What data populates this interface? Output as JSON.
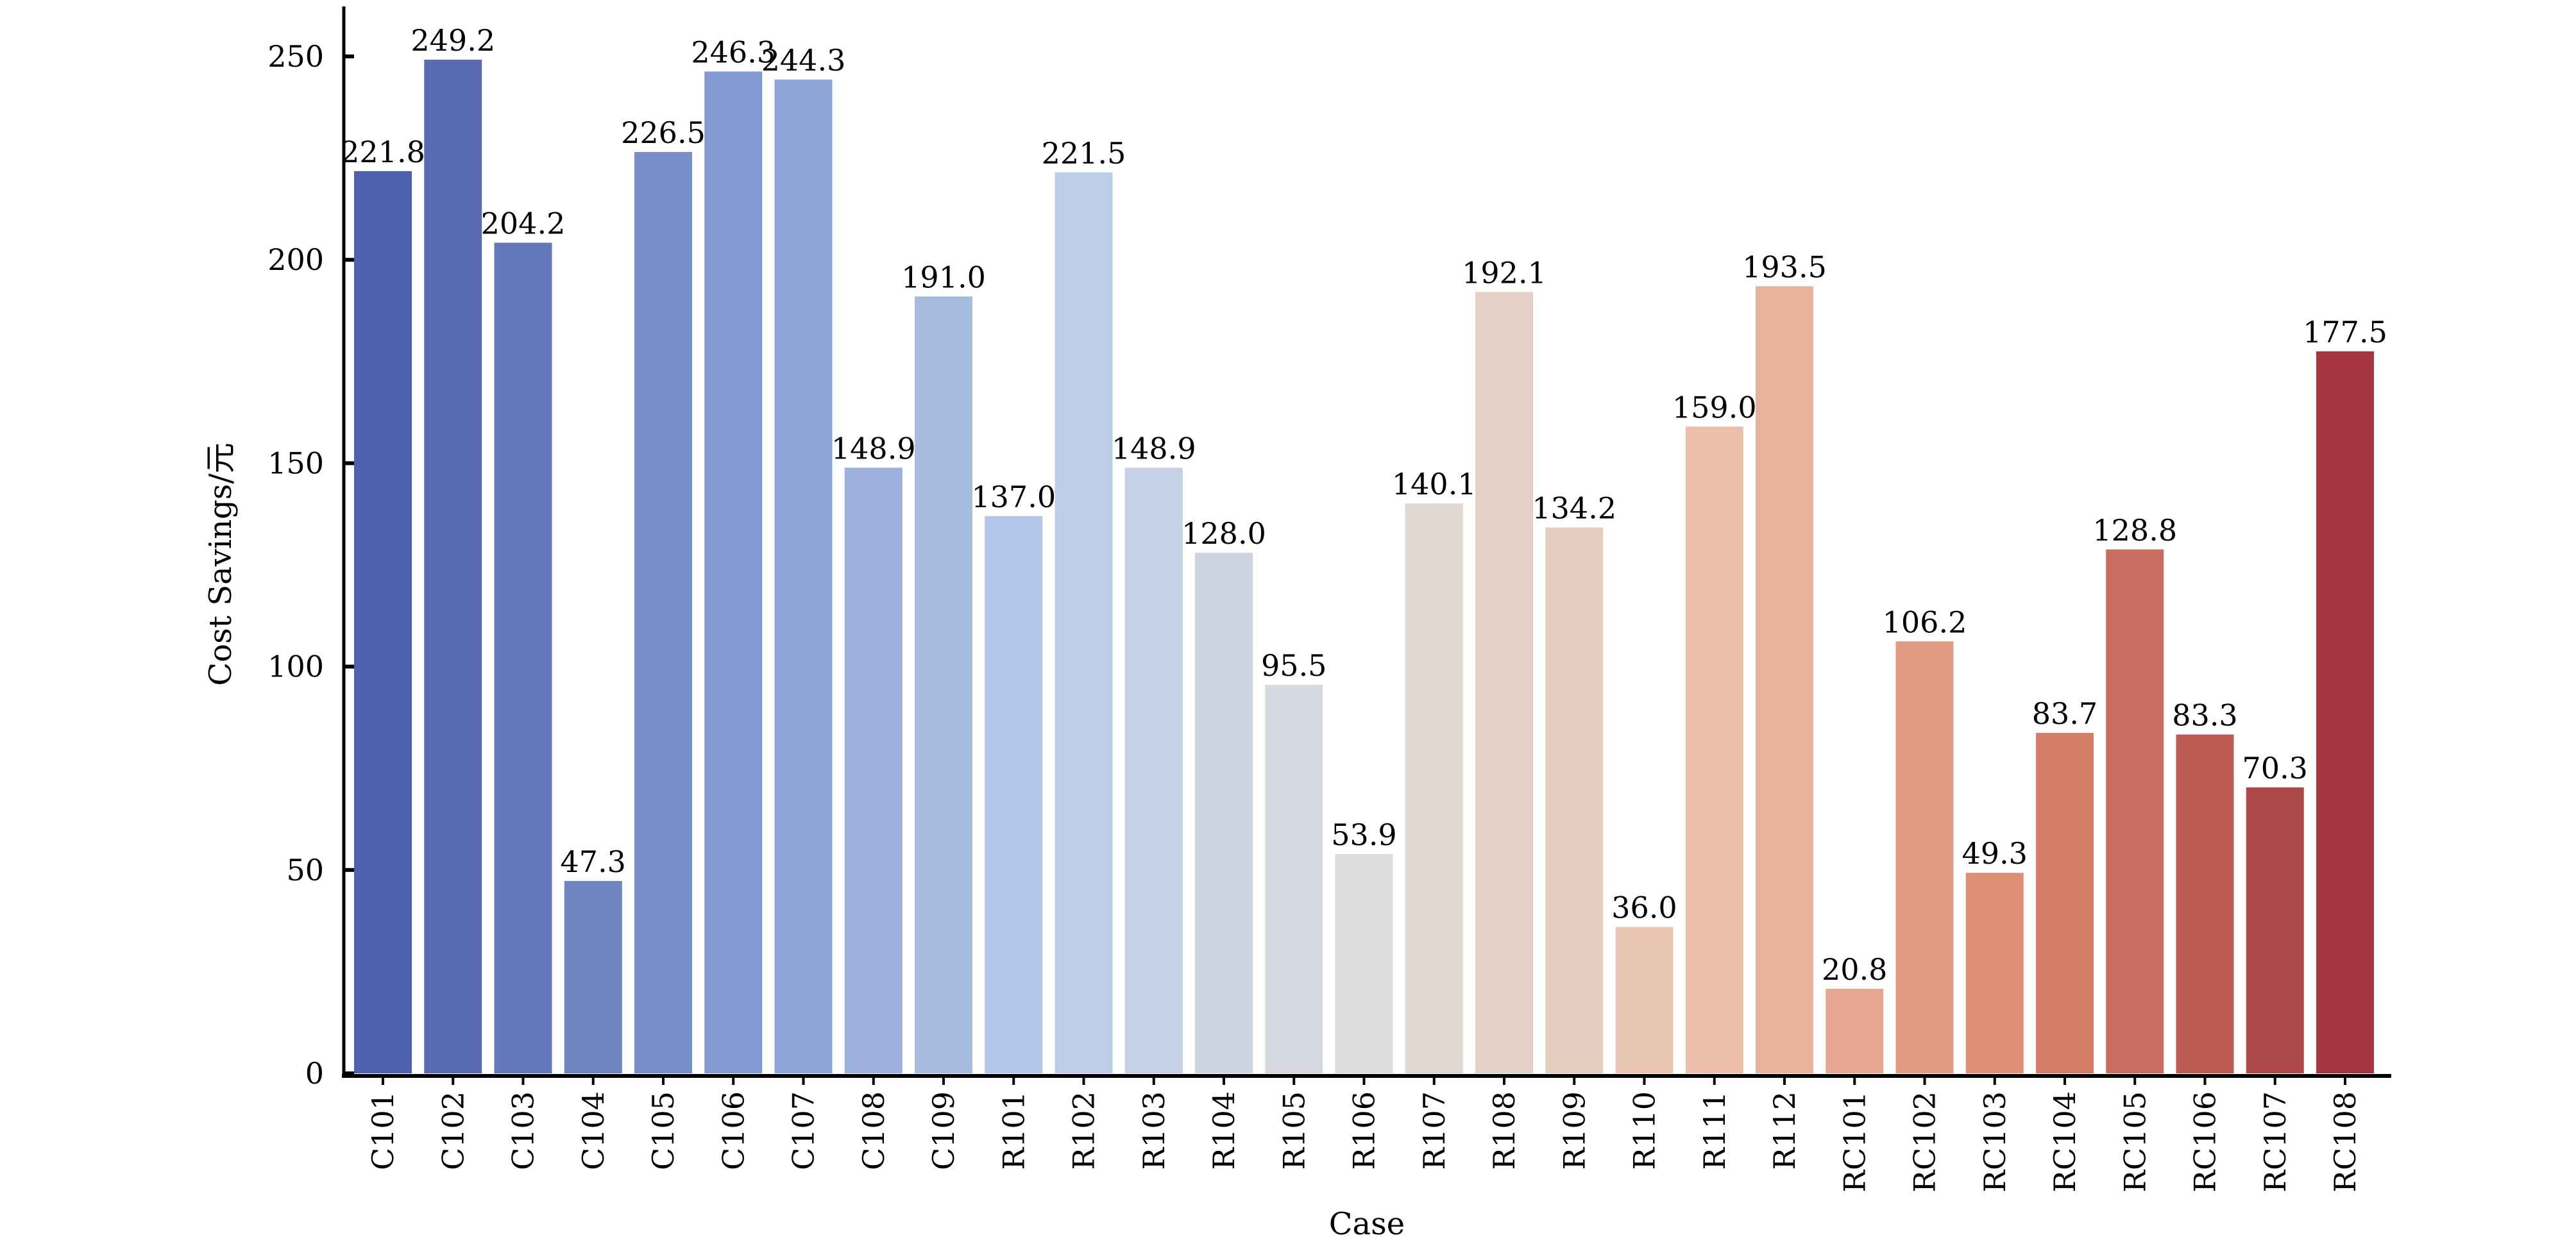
{
  "chart_data": {
    "type": "bar",
    "title": "",
    "xlabel": "Case",
    "ylabel": "Cost Savings/元",
    "ylim": [
      0,
      260
    ],
    "yticks": [
      0,
      50,
      100,
      150,
      200,
      250
    ],
    "grid": false,
    "legend": "none",
    "categories": [
      "C101",
      "C102",
      "C103",
      "C104",
      "C105",
      "C106",
      "C107",
      "C108",
      "C109",
      "R101",
      "R102",
      "R103",
      "R104",
      "R105",
      "R106",
      "R107",
      "R108",
      "R109",
      "R110",
      "R111",
      "R112",
      "RC101",
      "RC102",
      "RC103",
      "RC104",
      "RC105",
      "RC106",
      "RC107",
      "RC108"
    ],
    "values": [
      221.8,
      249.2,
      204.2,
      47.3,
      226.5,
      246.3,
      244.3,
      148.9,
      191.0,
      137.0,
      221.5,
      148.9,
      128.0,
      95.5,
      53.9,
      140.1,
      192.1,
      134.2,
      36.0,
      159.0,
      193.5,
      20.8,
      106.2,
      49.3,
      83.7,
      128.8,
      83.3,
      70.3,
      177.5
    ],
    "value_labels": [
      "221.8",
      "249.2",
      "204.2",
      "47.3",
      "226.5",
      "246.3",
      "244.3",
      "148.9",
      "191.0",
      "137.0",
      "221.5",
      "148.9",
      "128.0",
      "95.5",
      "53.9",
      "140.1",
      "192.1",
      "134.2",
      "36.0",
      "159.0",
      "193.5",
      "20.8",
      "106.2",
      "49.3",
      "83.7",
      "128.8",
      "83.3",
      "70.3",
      "177.5"
    ],
    "palette": [
      "#4e60ab",
      "#7f96cf",
      "#b9cbea",
      "#dcdcdc",
      "#ecc3ad",
      "#dd8b72",
      "#a3363e"
    ]
  }
}
